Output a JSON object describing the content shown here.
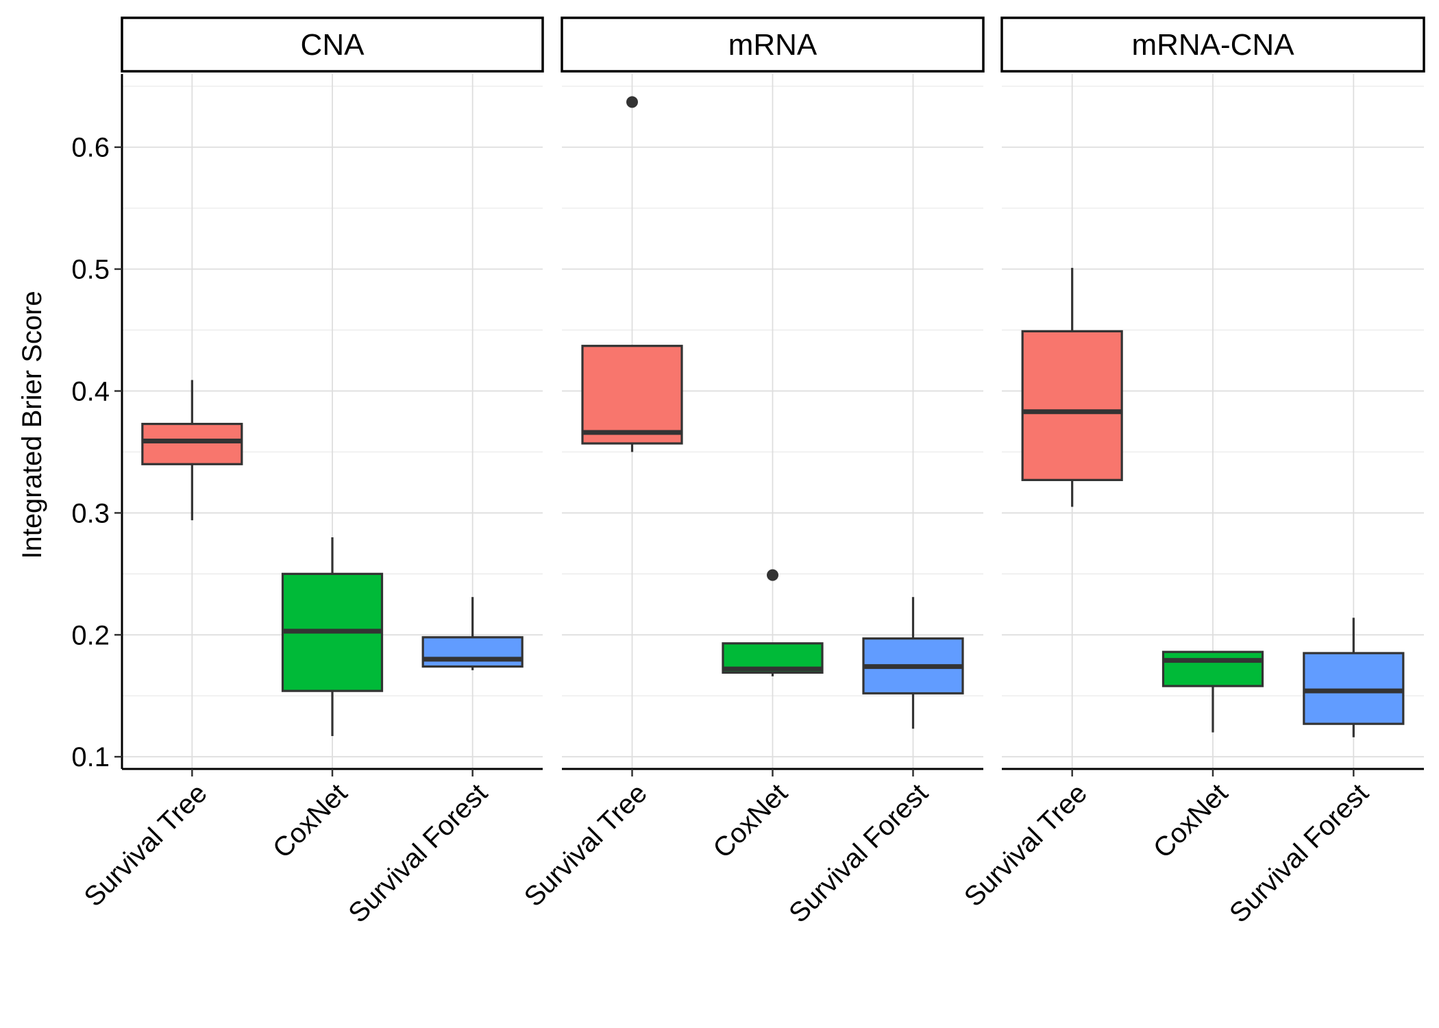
{
  "chart_data": {
    "type": "boxplot",
    "ylabel": "Integrated Brier Score",
    "ylim": [
      0.09,
      0.66
    ],
    "yticks": [
      0.1,
      0.2,
      0.3,
      0.4,
      0.5,
      0.6
    ],
    "ytick_labels": [
      "0.1",
      "0.2",
      "0.3",
      "0.4",
      "0.5",
      "0.6"
    ],
    "grid": true,
    "categories": [
      "Survival Tree",
      "CoxNet",
      "Survival Forest"
    ],
    "colors": {
      "Survival Tree": "#F8766D",
      "CoxNet": "#00BA38",
      "Survival Forest": "#619CFF"
    },
    "facets": [
      {
        "label": "CNA",
        "boxes": [
          {
            "category": "Survival Tree",
            "min": 0.294,
            "q1": 0.34,
            "median": 0.359,
            "q3": 0.373,
            "max": 0.409,
            "outliers": []
          },
          {
            "category": "CoxNet",
            "min": 0.117,
            "q1": 0.154,
            "median": 0.203,
            "q3": 0.25,
            "max": 0.28,
            "outliers": []
          },
          {
            "category": "Survival Forest",
            "min": 0.171,
            "q1": 0.174,
            "median": 0.18,
            "q3": 0.198,
            "max": 0.231,
            "outliers": []
          }
        ]
      },
      {
        "label": "mRNA",
        "boxes": [
          {
            "category": "Survival Tree",
            "min": 0.35,
            "q1": 0.357,
            "median": 0.366,
            "q3": 0.437,
            "max": 0.437,
            "outliers": [
              0.637
            ]
          },
          {
            "category": "CoxNet",
            "min": 0.166,
            "q1": 0.169,
            "median": 0.172,
            "q3": 0.193,
            "max": 0.193,
            "outliers": [
              0.249
            ]
          },
          {
            "category": "Survival Forest",
            "min": 0.123,
            "q1": 0.152,
            "median": 0.174,
            "q3": 0.197,
            "max": 0.231,
            "outliers": []
          }
        ]
      },
      {
        "label": "mRNA-CNA",
        "boxes": [
          {
            "category": "Survival Tree",
            "min": 0.305,
            "q1": 0.327,
            "median": 0.383,
            "q3": 0.449,
            "max": 0.501,
            "outliers": []
          },
          {
            "category": "CoxNet",
            "min": 0.12,
            "q1": 0.158,
            "median": 0.179,
            "q3": 0.186,
            "max": 0.186,
            "outliers": []
          },
          {
            "category": "Survival Forest",
            "min": 0.116,
            "q1": 0.127,
            "median": 0.154,
            "q3": 0.185,
            "max": 0.214,
            "outliers": []
          }
        ]
      }
    ]
  }
}
